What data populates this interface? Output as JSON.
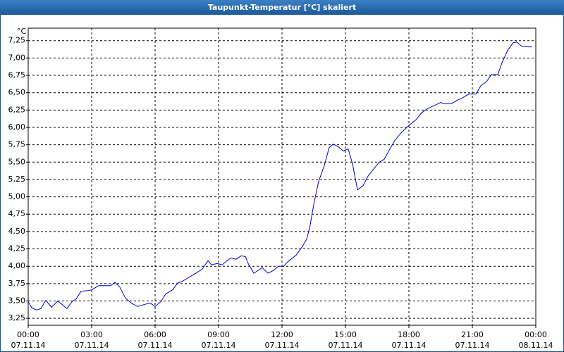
{
  "chart_data": {
    "type": "line",
    "title": "Taupunkt-Temperatur [°C] skaliert",
    "y_unit": "°C",
    "x": [
      0,
      0.17,
      0.4,
      0.6,
      0.83,
      1.1,
      1.4,
      1.6,
      1.83,
      2.07,
      2.27,
      2.5,
      2.83,
      3,
      3.33,
      3.67,
      3.9,
      4.1,
      4.33,
      4.6,
      4.87,
      5.17,
      5.5,
      5.77,
      6,
      6.27,
      6.5,
      6.83,
      7.07,
      7.27,
      7.6,
      7.93,
      8.23,
      8.5,
      8.67,
      8.93,
      9.17,
      9.4,
      9.6,
      9.83,
      10.07,
      10.27,
      10.4,
      10.67,
      10.87,
      11.07,
      11.33,
      11.6,
      11.83,
      12.07,
      12.33,
      12.67,
      12.93,
      13.17,
      13.33,
      13.5,
      13.73,
      14,
      14.23,
      14.43,
      14.67,
      14.9,
      15.13,
      15.33,
      15.57,
      15.83,
      16.07,
      16.33,
      16.6,
      16.83,
      17.1,
      17.33,
      17.6,
      17.93,
      18.33,
      18.6,
      18.87,
      19.17,
      19.5,
      19.67,
      20,
      20.27,
      20.5,
      20.83,
      21.17,
      21.4,
      21.67,
      21.9,
      22.2,
      22.4,
      22.67,
      22.93,
      23.1,
      23.33,
      23.67,
      23.83
    ],
    "series": [
      {
        "name": "Taupunkt-Temperatur",
        "color": "#0000cc",
        "values": [
          3.49,
          3.4,
          3.37,
          3.39,
          3.51,
          3.41,
          3.5,
          3.45,
          3.39,
          3.49,
          3.53,
          3.64,
          3.65,
          3.66,
          3.72,
          3.72,
          3.72,
          3.77,
          3.7,
          3.54,
          3.47,
          3.42,
          3.45,
          3.47,
          3.42,
          3.49,
          3.6,
          3.66,
          3.76,
          3.78,
          3.84,
          3.9,
          3.96,
          4.08,
          4.02,
          4.04,
          4.02,
          4.08,
          4.12,
          4.1,
          4.15,
          4.14,
          4.04,
          3.9,
          3.94,
          3.98,
          3.9,
          3.94,
          4.0,
          4.0,
          4.08,
          4.16,
          4.27,
          4.39,
          4.59,
          4.89,
          5.22,
          5.45,
          5.71,
          5.76,
          5.72,
          5.66,
          5.69,
          5.48,
          5.1,
          5.16,
          5.3,
          5.4,
          5.5,
          5.54,
          5.69,
          5.81,
          5.91,
          6.01,
          6.11,
          6.21,
          6.27,
          6.31,
          6.36,
          6.34,
          6.34,
          6.39,
          6.42,
          6.48,
          6.48,
          6.6,
          6.66,
          6.76,
          6.76,
          6.93,
          7.11,
          7.22,
          7.23,
          7.17,
          7.16,
          7.16
        ]
      }
    ],
    "xlim": [
      0,
      24
    ],
    "xticks": [
      {
        "value": 0,
        "label": "00:00"
      },
      {
        "value": 3,
        "label": "03:00"
      },
      {
        "value": 6,
        "label": "06:00"
      },
      {
        "value": 9,
        "label": "09:00"
      },
      {
        "value": 12,
        "label": "12:00"
      },
      {
        "value": 15,
        "label": "15:00"
      },
      {
        "value": 18,
        "label": "18:00"
      },
      {
        "value": 21,
        "label": "21:00"
      },
      {
        "value": 24,
        "label": "00:00"
      }
    ],
    "xtick_dates": [
      "07.11.14",
      "07.11.14",
      "07.11.14",
      "07.11.14",
      "07.11.14",
      "07.11.14",
      "07.11.14",
      "07.11.14",
      "08.11.14"
    ],
    "ylim": [
      3.15,
      7.43
    ],
    "yticks": [
      {
        "value": 3.25,
        "label": "3,25"
      },
      {
        "value": 3.5,
        "label": "3,50"
      },
      {
        "value": 3.75,
        "label": "3,75"
      },
      {
        "value": 4,
        "label": "4,00"
      },
      {
        "value": 4.25,
        "label": "4,25"
      },
      {
        "value": 4.5,
        "label": "4,50"
      },
      {
        "value": 4.75,
        "label": "4,75"
      },
      {
        "value": 5,
        "label": "5,00"
      },
      {
        "value": 5.25,
        "label": "5,25"
      },
      {
        "value": 5.5,
        "label": "5,50"
      },
      {
        "value": 5.75,
        "label": "5,75"
      },
      {
        "value": 6,
        "label": "6,00"
      },
      {
        "value": 6.25,
        "label": "6,25"
      },
      {
        "value": 6.5,
        "label": "6,50"
      },
      {
        "value": 6.75,
        "label": "6,75"
      },
      {
        "value": 7,
        "label": "7,00"
      },
      {
        "value": 7.25,
        "label": "7,25"
      }
    ],
    "grid": true
  }
}
